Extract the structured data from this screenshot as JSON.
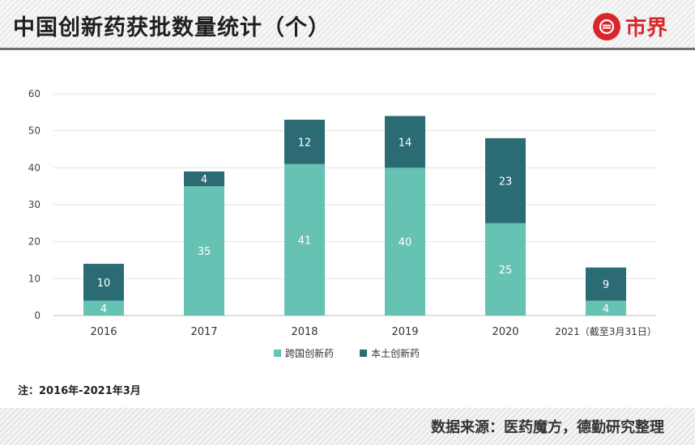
{
  "header": {
    "title": "中国创新药获批数量统计（个）",
    "logo_text": "市界"
  },
  "chart_data": {
    "type": "bar",
    "stacked": true,
    "title": "中国创新药获批数量统计（个）",
    "categories": [
      "2016",
      "2017",
      "2018",
      "2019",
      "2020",
      "2021（截至3月31日）"
    ],
    "series": [
      {
        "name": "跨国创新药",
        "color": "#66c2b2",
        "values": [
          4,
          35,
          41,
          40,
          25,
          4
        ]
      },
      {
        "name": "本土创新药",
        "color": "#2a6b74",
        "values": [
          10,
          4,
          12,
          14,
          23,
          9
        ]
      }
    ],
    "ylim": [
      0,
      60
    ],
    "yticks": [
      0,
      10,
      20,
      30,
      40,
      50,
      60
    ],
    "grid": true,
    "legend": "bottom-center",
    "xlabel": "",
    "ylabel": ""
  },
  "note": "注：2016年-2021年3月",
  "source": "数据来源：医药魔方，德勤研究整理"
}
